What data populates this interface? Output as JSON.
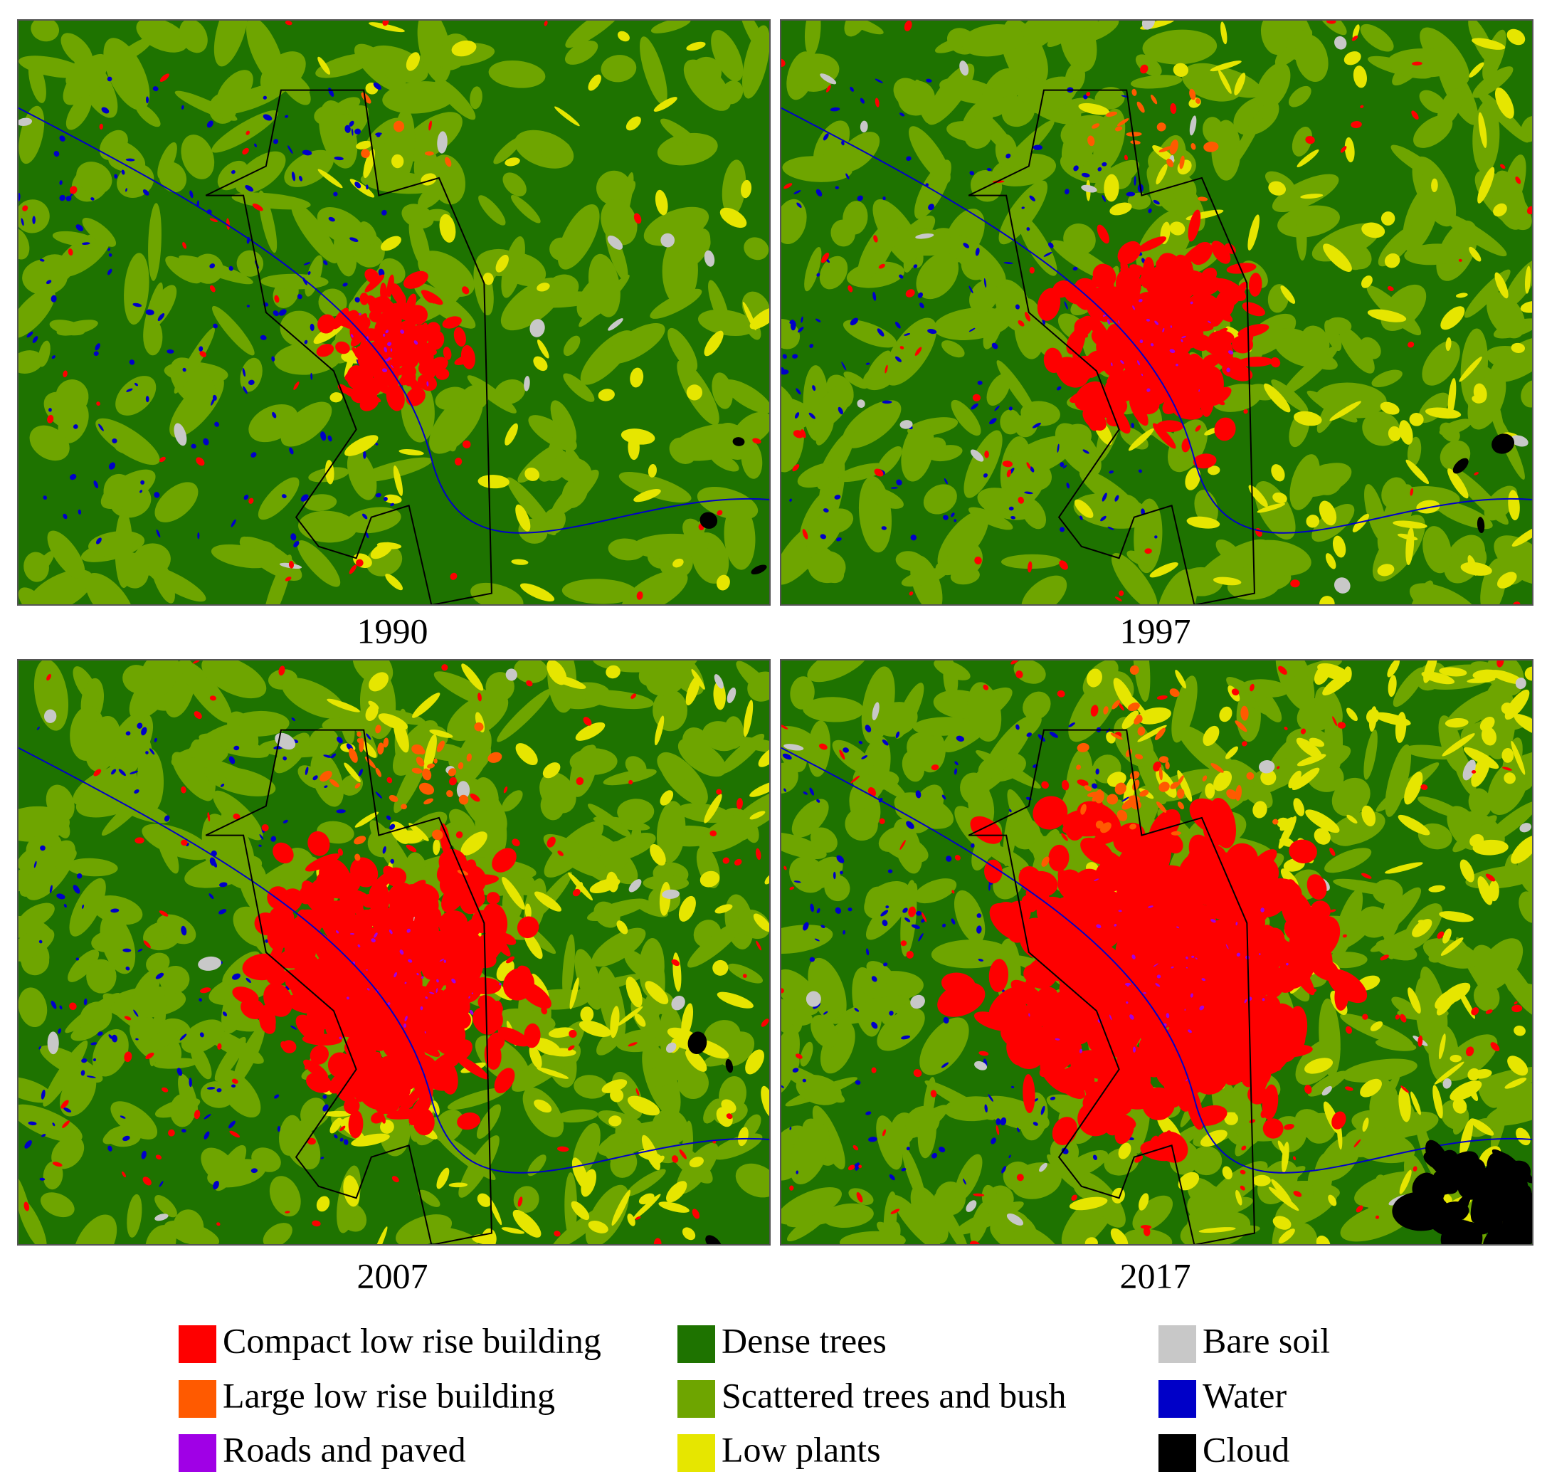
{
  "panels": [
    {
      "label": "1990"
    },
    {
      "label": "1997"
    },
    {
      "label": "2007"
    },
    {
      "label": "2017"
    }
  ],
  "legend": [
    {
      "label": "Compact low rise building",
      "color": "#fe0000"
    },
    {
      "label": "Large low rise building",
      "color": "#ff5a00"
    },
    {
      "label": "Roads and paved",
      "color": "#a000e6"
    },
    {
      "label": "Dense trees",
      "color": "#1e7300"
    },
    {
      "label": "Scattered trees and bush",
      "color": "#6ea500"
    },
    {
      "label": "Low plants",
      "color": "#e6e600"
    },
    {
      "label": "Bare soil",
      "color": "#c8c8c8"
    },
    {
      "label": "Water",
      "color": "#0000c8"
    },
    {
      "label": "Cloud",
      "color": "#000000"
    }
  ]
}
